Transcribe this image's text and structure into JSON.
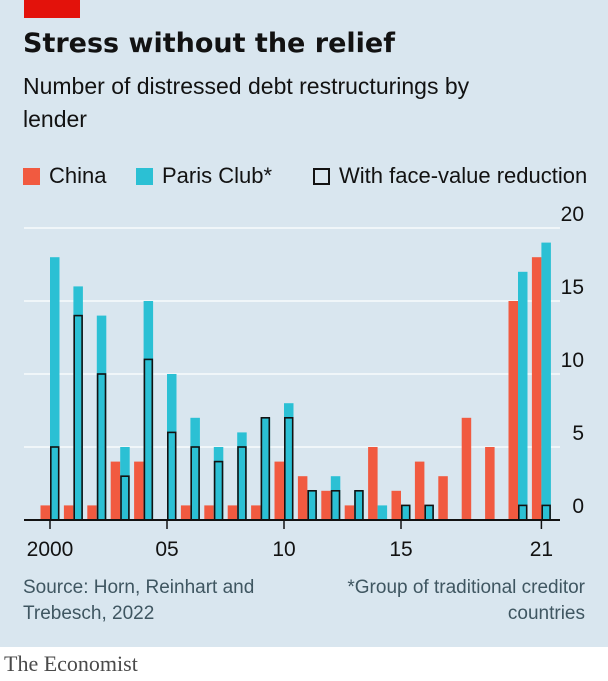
{
  "header": {
    "title": "Stress without the relief",
    "subtitle": "Number of distressed debt restructurings by lender"
  },
  "legend": [
    {
      "label": "China",
      "color": "#f15a40"
    },
    {
      "label": "Paris Club*",
      "color": "#2bc0d4"
    },
    {
      "label": "With face-value reduction",
      "color": "none"
    }
  ],
  "footer": {
    "source": "Source: Horn, Reinhart and Trebesch, 2022",
    "note": "*Group of traditional creditor countries",
    "brand": "The Economist"
  },
  "chart_data": {
    "type": "bar",
    "x": [
      2000,
      2001,
      2002,
      2003,
      2004,
      2005,
      2006,
      2007,
      2008,
      2009,
      2010,
      2011,
      2012,
      2013,
      2014,
      2015,
      2016,
      2017,
      2018,
      2019,
      2020,
      2021
    ],
    "x_tick_labels": [
      {
        "x": 2000,
        "label": "2000"
      },
      {
        "x": 2005,
        "label": "05"
      },
      {
        "x": 2010,
        "label": "10"
      },
      {
        "x": 2015,
        "label": "15"
      },
      {
        "x": 2021,
        "label": "21"
      }
    ],
    "y_ticks": [
      0,
      5,
      10,
      15,
      20
    ],
    "ylim": [
      0,
      20
    ],
    "y_axis_side": "right",
    "grid": true,
    "legend_position": "top",
    "series": [
      {
        "name": "China",
        "color": "#f15a40",
        "values": [
          1,
          1,
          1,
          4,
          4,
          0,
          1,
          1,
          1,
          1,
          4,
          3,
          2,
          1,
          5,
          2,
          4,
          3,
          7,
          5,
          15,
          18
        ]
      },
      {
        "name": "Paris Club*",
        "color": "#2bc0d4",
        "values": [
          18,
          16,
          14,
          5,
          15,
          10,
          7,
          5,
          6,
          7,
          8,
          2,
          3,
          2,
          1,
          1,
          1,
          0,
          0,
          0,
          17,
          19
        ]
      },
      {
        "name": "With face-value reduction",
        "color": "none",
        "values": [
          5,
          14,
          10,
          3,
          11,
          6,
          5,
          4,
          5,
          7,
          7,
          2,
          2,
          2,
          0,
          1,
          1,
          0,
          0,
          0,
          1,
          1
        ]
      }
    ]
  }
}
